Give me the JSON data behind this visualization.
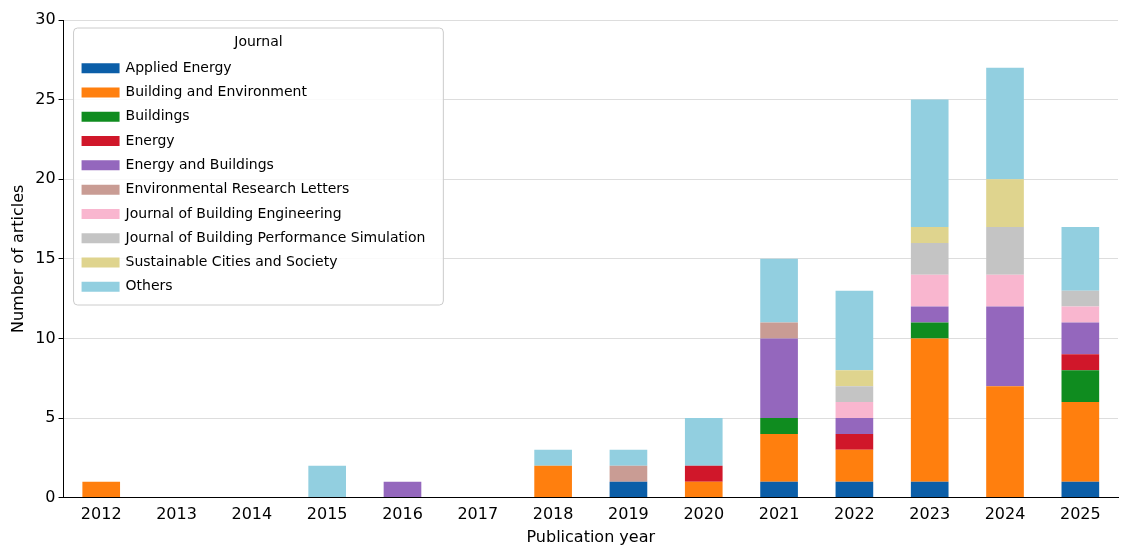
{
  "chart_data": {
    "type": "bar",
    "stacked": true,
    "xlabel": "Publication year",
    "ylabel": "Number of articles",
    "legend_title": "Journal",
    "legend": "top left",
    "grid": "y",
    "categories": [
      "2012",
      "2013",
      "2014",
      "2015",
      "2016",
      "2017",
      "2018",
      "2019",
      "2020",
      "2021",
      "2022",
      "2023",
      "2024",
      "2025"
    ],
    "ylim": [
      0,
      30
    ],
    "yticks": [
      0,
      5,
      10,
      15,
      20,
      25,
      30
    ],
    "series": [
      {
        "name": "Applied Energy",
        "color": "#0b5ea8",
        "values": [
          0,
          0,
          0,
          0,
          0,
          0,
          0,
          1,
          0,
          1,
          1,
          1,
          0,
          1
        ]
      },
      {
        "name": "Building and Environment",
        "color": "#ff7f0e",
        "values": [
          1,
          0,
          0,
          0,
          0,
          0,
          2,
          0,
          1,
          3,
          2,
          9,
          7,
          5
        ]
      },
      {
        "name": "Buildings",
        "color": "#0f8c1f",
        "values": [
          0,
          0,
          0,
          0,
          0,
          0,
          0,
          0,
          0,
          1,
          0,
          1,
          0,
          2
        ]
      },
      {
        "name": "Energy",
        "color": "#d0172a",
        "values": [
          0,
          0,
          0,
          0,
          0,
          0,
          0,
          0,
          1,
          0,
          1,
          0,
          0,
          1
        ]
      },
      {
        "name": "Energy and Buildings",
        "color": "#9467bd",
        "values": [
          0,
          0,
          0,
          0,
          1,
          0,
          0,
          0,
          0,
          5,
          1,
          1,
          5,
          2
        ]
      },
      {
        "name": "Environmental Research Letters",
        "color": "#c99c94",
        "values": [
          0,
          0,
          0,
          0,
          0,
          0,
          0,
          1,
          0,
          1,
          0,
          0,
          0,
          0
        ]
      },
      {
        "name": "Journal of Building Engineering",
        "color": "#f9b6cf",
        "values": [
          0,
          0,
          0,
          0,
          0,
          0,
          0,
          0,
          0,
          0,
          1,
          2,
          2,
          1
        ]
      },
      {
        "name": "Journal of Building Performance Simulation",
        "color": "#c4c4c4",
        "values": [
          0,
          0,
          0,
          0,
          0,
          0,
          0,
          0,
          0,
          0,
          1,
          2,
          3,
          1
        ]
      },
      {
        "name": "Sustainable Cities and Society",
        "color": "#dfd48e",
        "values": [
          0,
          0,
          0,
          0,
          0,
          0,
          0,
          0,
          0,
          0,
          1,
          1,
          3,
          0
        ]
      },
      {
        "name": "Others",
        "color": "#92cfe0",
        "values": [
          0,
          0,
          0,
          2,
          0,
          0,
          1,
          1,
          3,
          4,
          5,
          8,
          7,
          4
        ]
      }
    ]
  }
}
